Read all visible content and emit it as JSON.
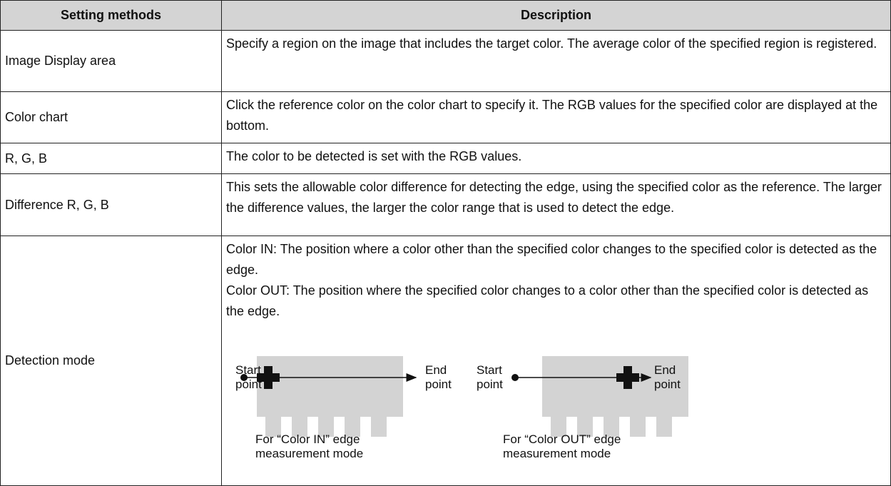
{
  "table": {
    "headers": [
      "Setting methods",
      "Description"
    ],
    "rows": [
      {
        "method": "Image Display area",
        "paragraphs": [
          "Specify a region on the image that includes the target color. The average color of the specified region is registered."
        ]
      },
      {
        "method": "Color chart",
        "paragraphs": [
          "Click the reference color on the color chart to specify it. The RGB values for the specified color are displayed at the bottom."
        ]
      },
      {
        "method": "R, G, B",
        "paragraphs": [
          "The color to be detected is set with the RGB values."
        ]
      },
      {
        "method": "Difference R, G, B",
        "paragraphs": [
          "This sets the allowable color difference for detecting the edge, using the specified color as the reference. The larger the difference values, the larger the color range that is used to detect the edge."
        ]
      },
      {
        "method": "Detection mode",
        "paragraphs": [
          "Color IN: The position where a color other than the specified color changes to the specified color is detected as the edge.",
          "Color OUT: The position where the specified color changes to a color other than the specified color is detected as the edge."
        ],
        "diagrams": [
          {
            "start": "Start point",
            "end": "End point",
            "caption": "For “Color IN” edge measurement mode"
          },
          {
            "start": "Start point",
            "end": "End point",
            "caption": "For “Color OUT” edge measurement mode"
          }
        ]
      }
    ]
  }
}
